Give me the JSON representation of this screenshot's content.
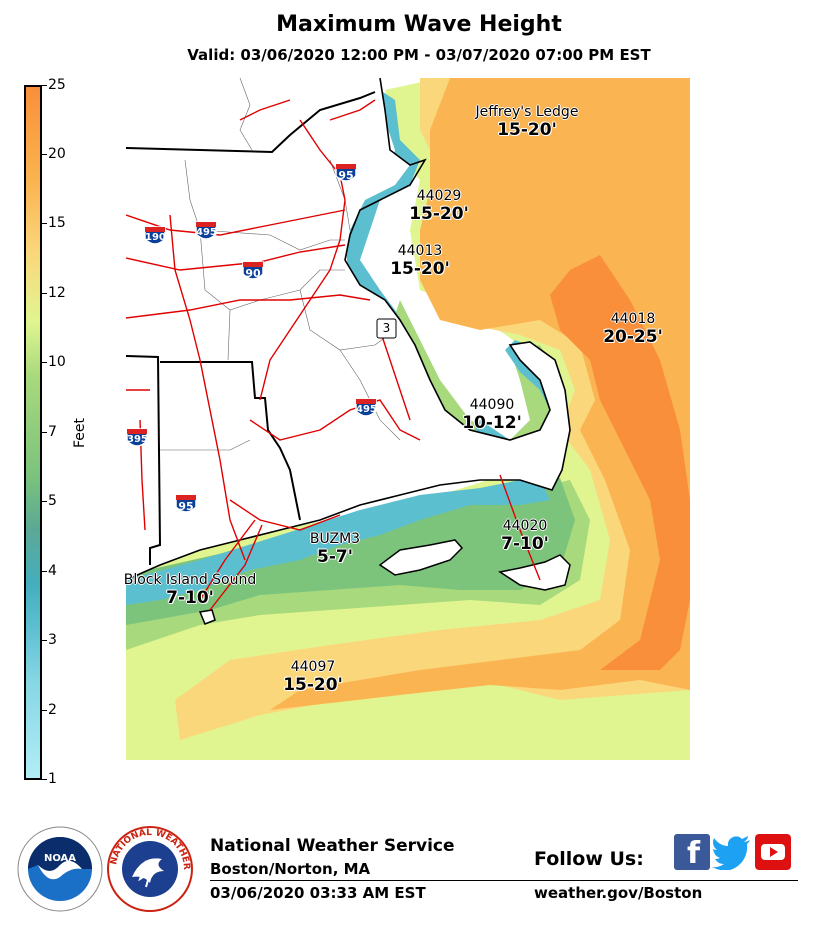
{
  "title": "Maximum Wave Height",
  "subtitle": "Valid: 03/06/2020 12:00 PM - 03/07/2020 07:00 PM EST",
  "colorbar": {
    "label": "Feet",
    "ticks": [
      "1",
      "2",
      "3",
      "4",
      "5",
      "7",
      "10",
      "12",
      "15",
      "20",
      "25"
    ],
    "colors": [
      "#b1eef5",
      "#86d6e4",
      "#5cbfd0",
      "#44aebd",
      "#5ba995",
      "#7cc47c",
      "#a8d97c",
      "#e0f590",
      "#fbd77c",
      "#fab552",
      "#f98f3a"
    ]
  },
  "locations": [
    {
      "name": "Jeffrey's Ledge",
      "value": "15-20'"
    },
    {
      "name": "44029",
      "value": "15-20'"
    },
    {
      "name": "44013",
      "value": "15-20'"
    },
    {
      "name": "44018",
      "value": "20-25'"
    },
    {
      "name": "44090",
      "value": "10-12'"
    },
    {
      "name": "44020",
      "value": "7-10'"
    },
    {
      "name": "BUZM3",
      "value": "5-7'"
    },
    {
      "name": "Block Island Sound",
      "value": "7-10'"
    },
    {
      "name": "44097",
      "value": "15-20'"
    }
  ],
  "highways": [
    "95",
    "190",
    "495",
    "90",
    "3",
    "495",
    "395",
    "95"
  ],
  "footer": {
    "agency": "National Weather Service",
    "office": "Boston/Norton, MA",
    "issued": "03/06/2020 03:33 AM EST",
    "follow": "Follow Us:",
    "url": "weather.gov/Boston",
    "noaa": "NOAA",
    "nws_ring": "NATIONAL WEATHER SERVICE"
  }
}
